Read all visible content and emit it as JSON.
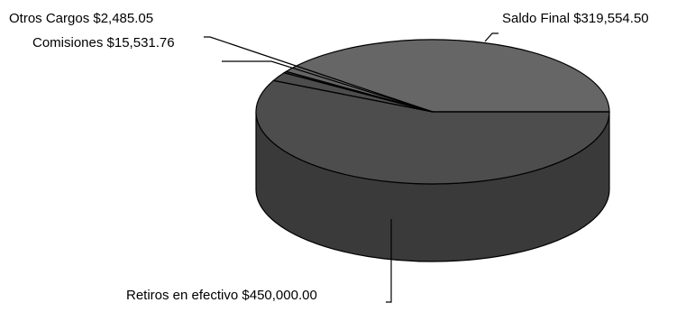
{
  "chart_data": {
    "type": "pie",
    "style": "3d",
    "slices": [
      {
        "label": "Saldo Final",
        "value": 319554.5,
        "value_text": "$319,554.50"
      },
      {
        "label": "Retiros en efectivo",
        "value": 450000.0,
        "value_text": "$450,000.00"
      },
      {
        "label": "Comisiones",
        "value": 15531.76,
        "value_text": "$15,531.76"
      },
      {
        "label": "Otros Cargos",
        "value": 2485.05,
        "value_text": "$2,485.05"
      }
    ],
    "colors": {
      "top_light": "#666666",
      "top_dark": "#4d4d4d",
      "side": "#3a3a3a",
      "outline": "#000000"
    },
    "title": "",
    "legend": "none"
  },
  "labels": {
    "saldo_final": "Saldo Final $319,554.50",
    "retiros": "Retiros en efectivo $450,000.00",
    "comisiones": "Comisiones $15,531.76",
    "otros_cargos": "Otros Cargos $2,485.05"
  }
}
